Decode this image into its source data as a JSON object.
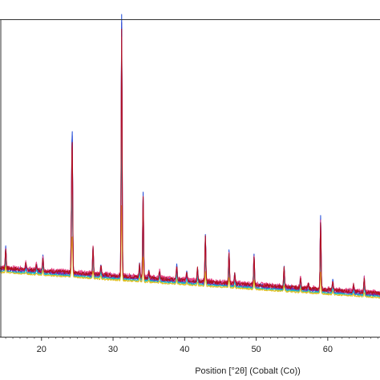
{
  "chart_data": {
    "type": "line",
    "title": "",
    "xlabel": "Position [°2θ] (Cobalt (Co))",
    "ylabel": "",
    "xlim": [
      14.2,
      67.3
    ],
    "ylim": [
      0,
      100
    ],
    "x_ticks": [
      20,
      30,
      40,
      50,
      60
    ],
    "grid": false,
    "legend": "none",
    "baseline": {
      "x": [
        14.2,
        67.3
      ],
      "y": [
        21.5,
        13.5
      ]
    },
    "peaks": [
      {
        "x": 15.0,
        "h": 6.5
      },
      {
        "x": 17.8,
        "h": 2.0
      },
      {
        "x": 19.3,
        "h": 2.0
      },
      {
        "x": 20.2,
        "h": 4.5
      },
      {
        "x": 24.2,
        "h": 17.0
      },
      {
        "x": 24.3,
        "h": 37.5
      },
      {
        "x": 27.2,
        "h": 8.5
      },
      {
        "x": 28.3,
        "h": 3.0
      },
      {
        "x": 31.2,
        "h": 79.0
      },
      {
        "x": 33.7,
        "h": 4.0
      },
      {
        "x": 34.2,
        "h": 26.0
      },
      {
        "x": 35.0,
        "h": 2.0
      },
      {
        "x": 36.5,
        "h": 2.5
      },
      {
        "x": 38.9,
        "h": 4.5
      },
      {
        "x": 40.3,
        "h": 2.5
      },
      {
        "x": 41.8,
        "h": 4.0
      },
      {
        "x": 42.9,
        "h": 14.5
      },
      {
        "x": 46.2,
        "h": 10.0
      },
      {
        "x": 47.0,
        "h": 3.0
      },
      {
        "x": 49.7,
        "h": 9.5
      },
      {
        "x": 53.9,
        "h": 6.0
      },
      {
        "x": 56.2,
        "h": 3.5
      },
      {
        "x": 57.3,
        "h": 1.5
      },
      {
        "x": 59.0,
        "h": 22.0
      },
      {
        "x": 60.7,
        "h": 3.0
      },
      {
        "x": 63.6,
        "h": 2.0
      },
      {
        "x": 65.1,
        "h": 4.5
      }
    ],
    "series": [
      {
        "color": "#c8205a",
        "scale": 1.0,
        "noise": 0.6,
        "offset": 0.0,
        "seed": 1
      },
      {
        "color": "#6a2bb8",
        "scale": 1.02,
        "noise": 0.5,
        "offset": -0.4,
        "seed": 2
      },
      {
        "color": "#1f4bd8",
        "scale": 1.04,
        "noise": 0.4,
        "offset": 0.3,
        "seed": 3
      },
      {
        "color": "#18b8c8",
        "scale": 0.6,
        "noise": 0.3,
        "offset": -0.8,
        "seed": 4
      },
      {
        "color": "#e0c020",
        "scale": 0.3,
        "noise": 0.25,
        "offset": -1.2,
        "seed": 5
      },
      {
        "color": "#e8488a",
        "scale": 0.95,
        "noise": 0.7,
        "offset": 0.5,
        "seed": 6
      },
      {
        "color": "#b01020",
        "scale": 0.98,
        "noise": 0.6,
        "offset": 0.2,
        "seed": 7
      }
    ]
  }
}
